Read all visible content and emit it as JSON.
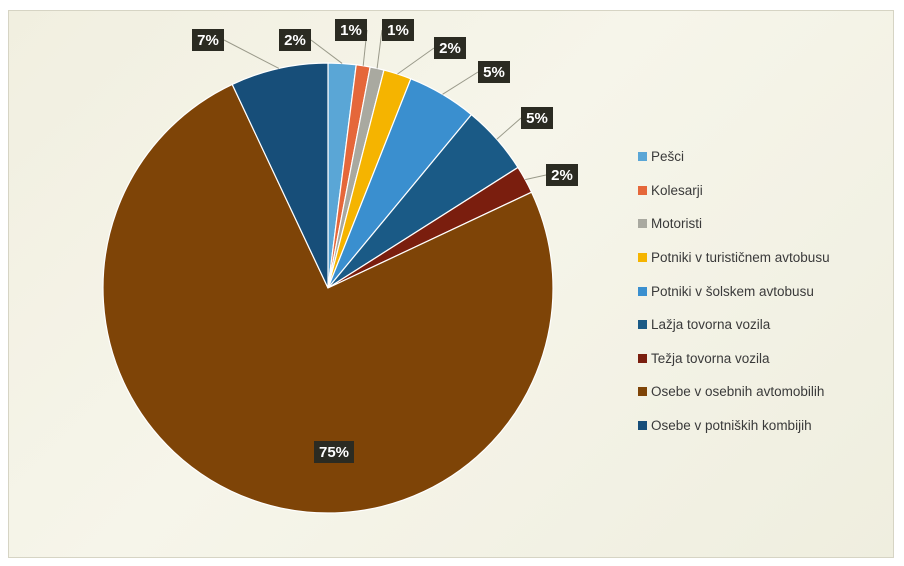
{
  "chart_data": {
    "type": "pie",
    "title": "",
    "categories": [
      "Pešci",
      "Kolesarji",
      "Motoristi",
      "Potniki v turističnem avtobusu",
      "Potniki v šolskem avtobusu",
      "Lažja tovorna vozila",
      "Težja tovorna vozila",
      "Osebe v osebnih avtomobilih",
      "Osebe v potniških kombijih"
    ],
    "values": [
      2,
      1,
      1,
      2,
      5,
      5,
      2,
      75,
      7
    ],
    "data_labels": [
      "2%",
      "1%",
      "1%",
      "2%",
      "5%",
      "5%",
      "2%",
      "75%",
      "7%"
    ],
    "colors": [
      "#5aa6d6",
      "#e5673a",
      "#a9a9a0",
      "#f5b400",
      "#3a8fcf",
      "#1a5a86",
      "#7a1e0e",
      "#7e4407",
      "#174e79"
    ],
    "start_angle": "12 o'clock",
    "direction": "clockwise",
    "legend_position": "right"
  }
}
